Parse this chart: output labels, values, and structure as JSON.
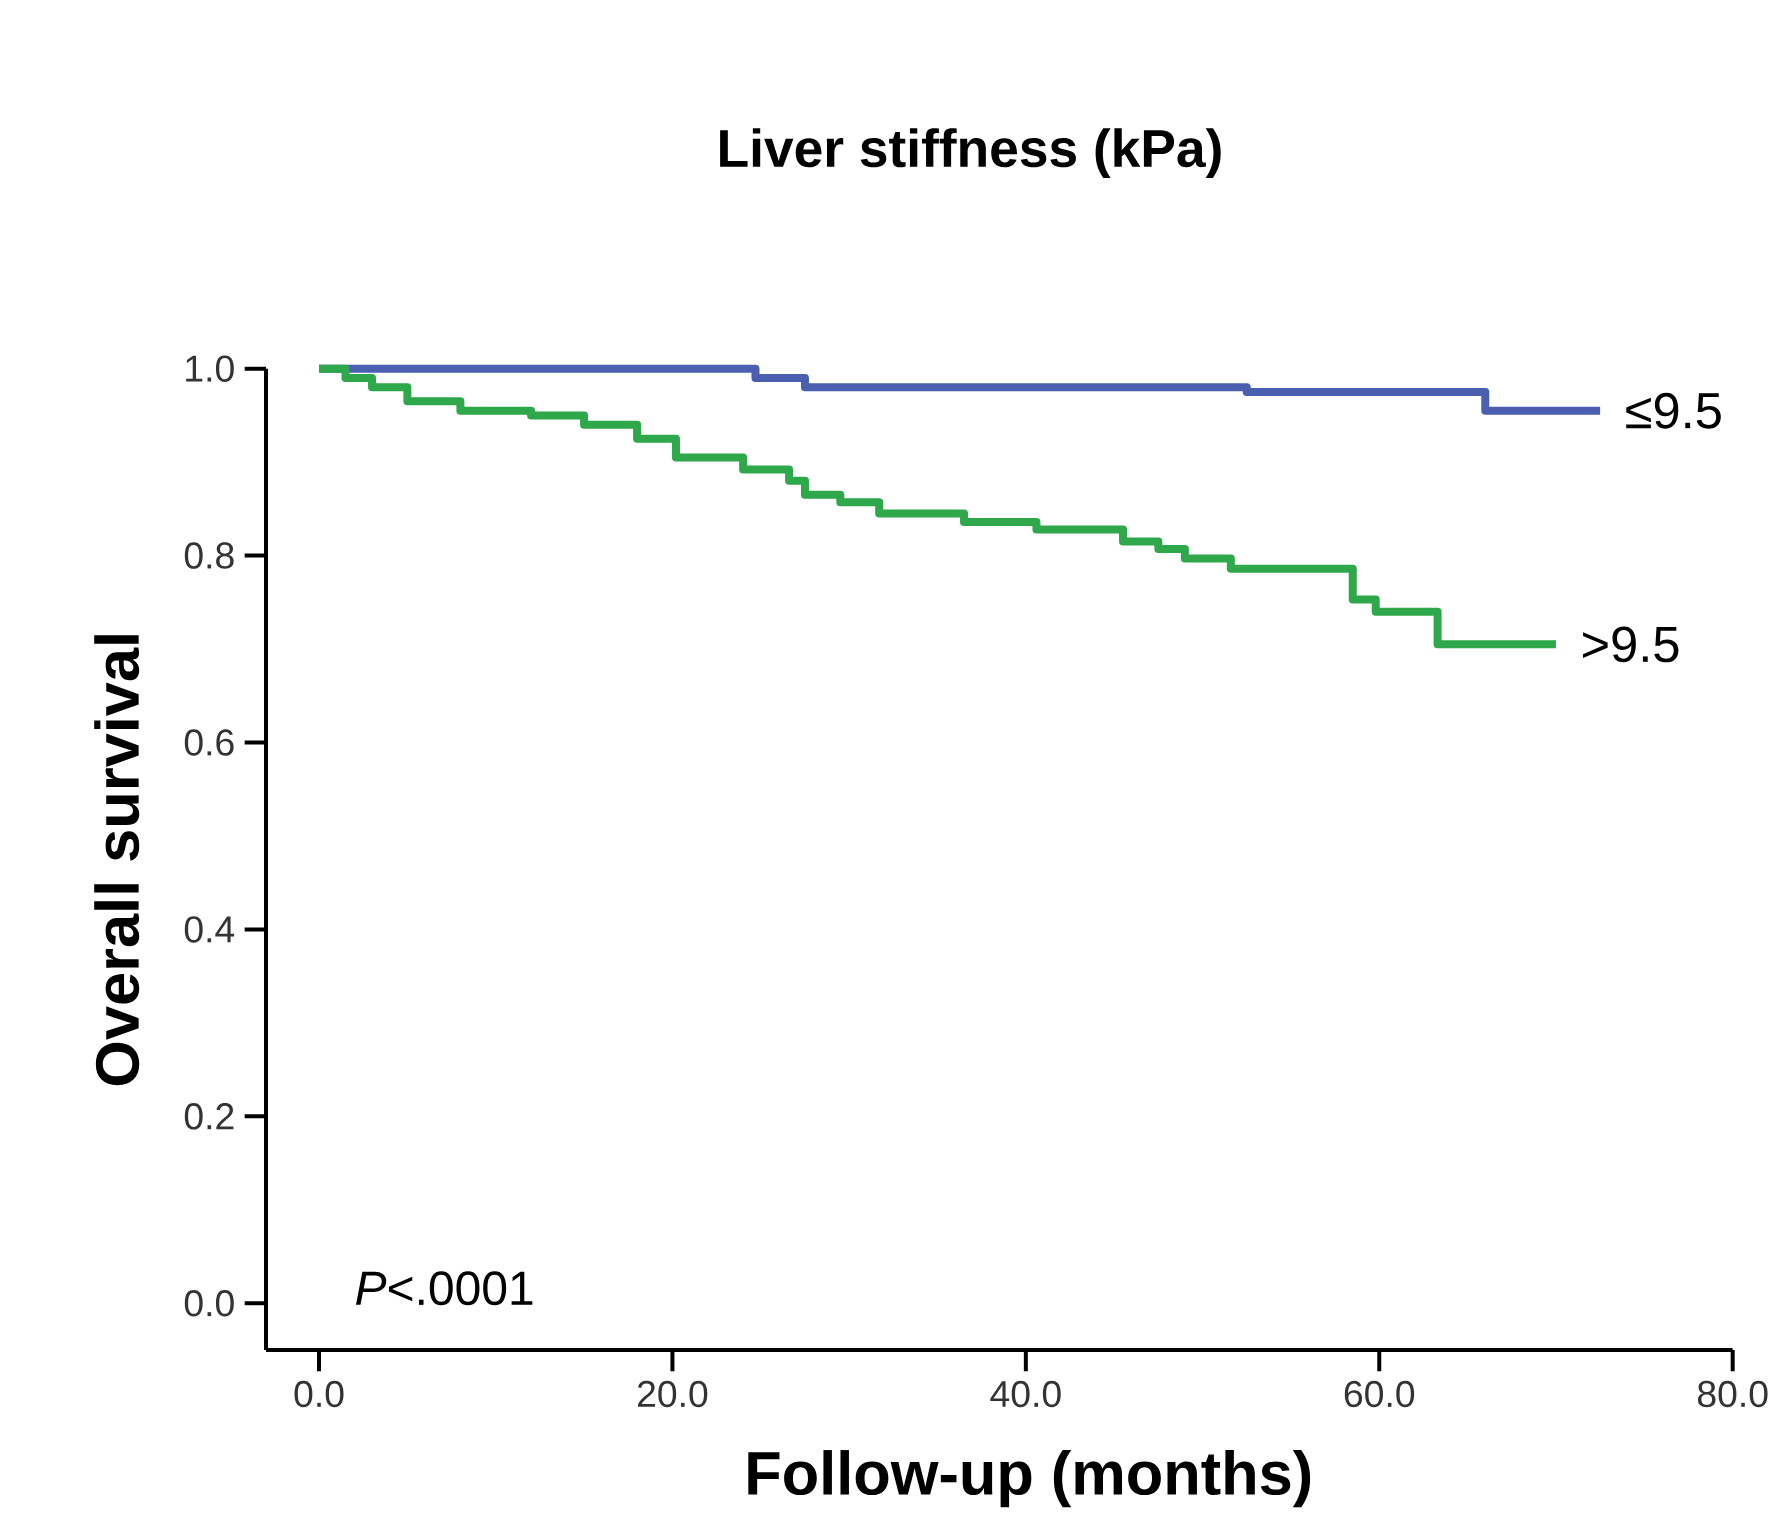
{
  "chart_data": {
    "type": "step",
    "title": "Liver stiffness (kPa)",
    "xlabel": "Follow-up (months)",
    "ylabel": "Overall survival",
    "xlim": [
      -3,
      80
    ],
    "ylim": [
      -0.05,
      1.0
    ],
    "xticks": [
      {
        "value": 0,
        "label": "0.0"
      },
      {
        "value": 20,
        "label": "20.0"
      },
      {
        "value": 40,
        "label": "40.0"
      },
      {
        "value": 60,
        "label": "60.0"
      },
      {
        "value": 80,
        "label": "80.0"
      }
    ],
    "yticks": [
      {
        "value": 0,
        "label": "0.0"
      },
      {
        "value": 0.2,
        "label": "0.2"
      },
      {
        "value": 0.4,
        "label": "0.4"
      },
      {
        "value": 0.6,
        "label": "0.6"
      },
      {
        "value": 0.8,
        "label": "0.8"
      },
      {
        "value": 1.0,
        "label": "1.0"
      }
    ],
    "series": [
      {
        "name": "≤9.5",
        "color": "#4a5fb0",
        "x": [
          0,
          24.7,
          27.5,
          52.5,
          66,
          72.5
        ],
        "values": [
          1.0,
          0.99,
          0.98,
          0.975,
          0.955,
          0.955
        ]
      },
      {
        "name": ">9.5",
        "color": "#2ea84a",
        "x": [
          0,
          1.5,
          3,
          5,
          8,
          12,
          15,
          18,
          20.2,
          24,
          26.6,
          27.5,
          29.5,
          31.7,
          36.5,
          40.6,
          45.5,
          47.5,
          49,
          51.6,
          58.5,
          59.8,
          63.3,
          70
        ],
        "values": [
          1.0,
          0.99,
          0.98,
          0.965,
          0.955,
          0.95,
          0.94,
          0.925,
          0.905,
          0.892,
          0.88,
          0.865,
          0.857,
          0.845,
          0.836,
          0.828,
          0.815,
          0.807,
          0.797,
          0.786,
          0.753,
          0.74,
          0.705,
          0.705
        ]
      }
    ],
    "annotations": [
      "*P*<.0001"
    ]
  }
}
